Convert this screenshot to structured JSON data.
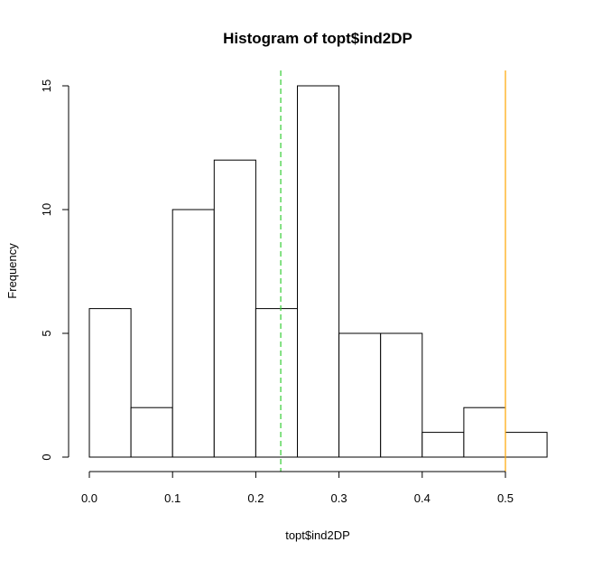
{
  "chart_data": {
    "type": "bar",
    "title": "Histogram of topt$ind2DP",
    "xlabel": "topt$ind2DP",
    "ylabel": "Frequency",
    "bins": [
      {
        "start": 0.0,
        "end": 0.05,
        "count": 6
      },
      {
        "start": 0.05,
        "end": 0.1,
        "count": 2
      },
      {
        "start": 0.1,
        "end": 0.15,
        "count": 10
      },
      {
        "start": 0.15,
        "end": 0.2,
        "count": 12
      },
      {
        "start": 0.2,
        "end": 0.25,
        "count": 6
      },
      {
        "start": 0.25,
        "end": 0.3,
        "count": 15
      },
      {
        "start": 0.3,
        "end": 0.35,
        "count": 5
      },
      {
        "start": 0.35,
        "end": 0.4,
        "count": 5
      },
      {
        "start": 0.4,
        "end": 0.45,
        "count": 1
      },
      {
        "start": 0.45,
        "end": 0.5,
        "count": 2
      },
      {
        "start": 0.5,
        "end": 0.55,
        "count": 1
      }
    ],
    "xlim": [
      0,
      0.55
    ],
    "ylim": [
      0,
      15
    ],
    "xticks": [
      0.0,
      0.1,
      0.2,
      0.3,
      0.4,
      0.5
    ],
    "xtick_labels": [
      "0.0",
      "0.1",
      "0.2",
      "0.3",
      "0.4",
      "0.5"
    ],
    "yticks": [
      0,
      5,
      10,
      15
    ],
    "ytick_labels": [
      "0",
      "5",
      "10",
      "15"
    ],
    "grid": false,
    "vlines": [
      {
        "x": 0.23,
        "color": "#33cc33",
        "style": "dashed"
      },
      {
        "x": 0.5,
        "color": "#ffa500",
        "style": "solid"
      }
    ],
    "bar_fill": "#ffffff",
    "bar_stroke": "#000000"
  }
}
